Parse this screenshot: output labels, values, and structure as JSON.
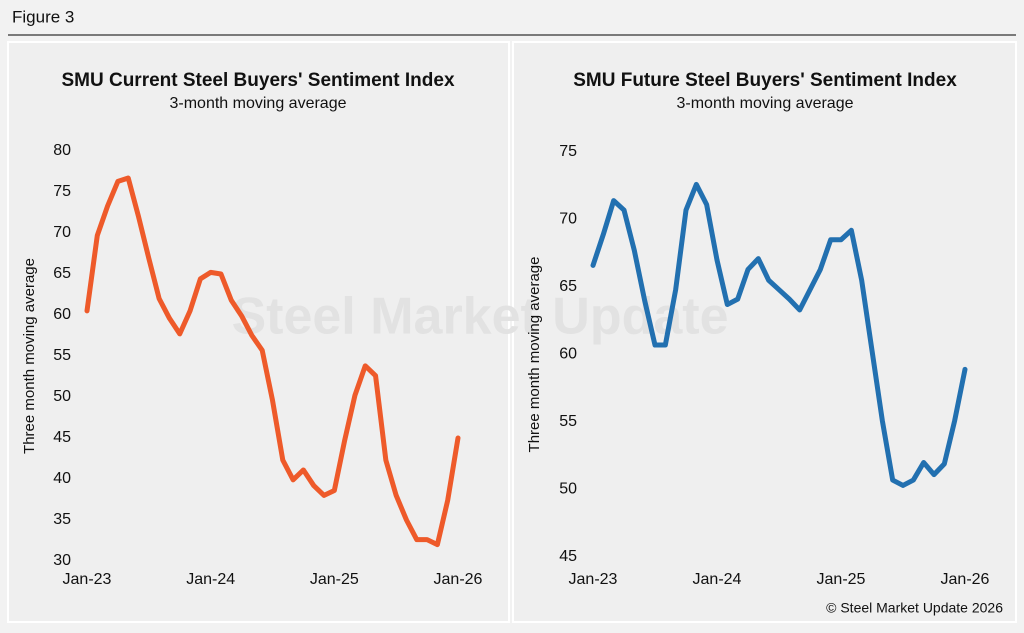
{
  "figure_label": "Figure 3",
  "watermark": "Steel Market Update",
  "copyright": "© Steel Market Update 2026",
  "chart_data": [
    {
      "type": "line",
      "title": "SMU Current Steel Buyers' Sentiment Index",
      "subtitle": "3-month moving average",
      "y_label": "Three month moving average",
      "categories": [
        "Jan-23",
        null,
        null,
        null,
        null,
        null,
        null,
        null,
        null,
        null,
        null,
        null,
        "Jan-24",
        null,
        null,
        null,
        null,
        null,
        null,
        null,
        null,
        null,
        null,
        null,
        "Jan-25",
        null,
        null,
        null,
        null,
        null,
        null,
        null,
        null,
        null,
        null,
        null,
        "Jan-26"
      ],
      "series": [
        {
          "name": "Current",
          "color": "#ee5a2a",
          "values": [
            60.5,
            69.7,
            73.3,
            76.3,
            76.7,
            72,
            66.9,
            62,
            59.6,
            57.7,
            60.5,
            64.4,
            65.2,
            65,
            61.8,
            59.9,
            57.5,
            55.7,
            49.6,
            42.3,
            39.9,
            41.1,
            39.2,
            38,
            38.6,
            44.7,
            50.2,
            53.8,
            52.6,
            42.3,
            38,
            35,
            32.6,
            32.6,
            32,
            37.4,
            45
          ]
        }
      ],
      "ylim": [
        30,
        80
      ],
      "yticks": [
        30,
        35,
        40,
        45,
        50,
        55,
        60,
        65,
        70,
        75,
        80
      ]
    },
    {
      "type": "line",
      "title": "SMU Future Steel Buyers' Sentiment Index",
      "subtitle": "3-month moving average",
      "y_label": "Three month moving average",
      "categories": [
        "Jan-23",
        null,
        null,
        null,
        null,
        null,
        null,
        null,
        null,
        null,
        null,
        null,
        "Jan-24",
        null,
        null,
        null,
        null,
        null,
        null,
        null,
        null,
        null,
        null,
        null,
        "Jan-25",
        null,
        null,
        null,
        null,
        null,
        null,
        null,
        null,
        null,
        null,
        null,
        "Jan-26"
      ],
      "series": [
        {
          "name": "Future",
          "color": "#2270b0",
          "values": [
            66.6,
            68.9,
            71.4,
            70.7,
            67.7,
            64,
            60.7,
            60.7,
            64.8,
            70.7,
            72.6,
            71.1,
            67,
            63.7,
            64.1,
            66.3,
            67.1,
            65.5,
            64.8,
            64.1,
            63.3,
            64.8,
            66.3,
            68.5,
            68.5,
            69.2,
            65.5,
            60.3,
            55.1,
            50.7,
            50.3,
            50.7,
            52,
            51.1,
            51.9,
            55.1,
            58.9
          ]
        }
      ],
      "ylim": [
        45,
        75
      ],
      "yticks": [
        45,
        50,
        55,
        60,
        65,
        70,
        75
      ]
    }
  ]
}
